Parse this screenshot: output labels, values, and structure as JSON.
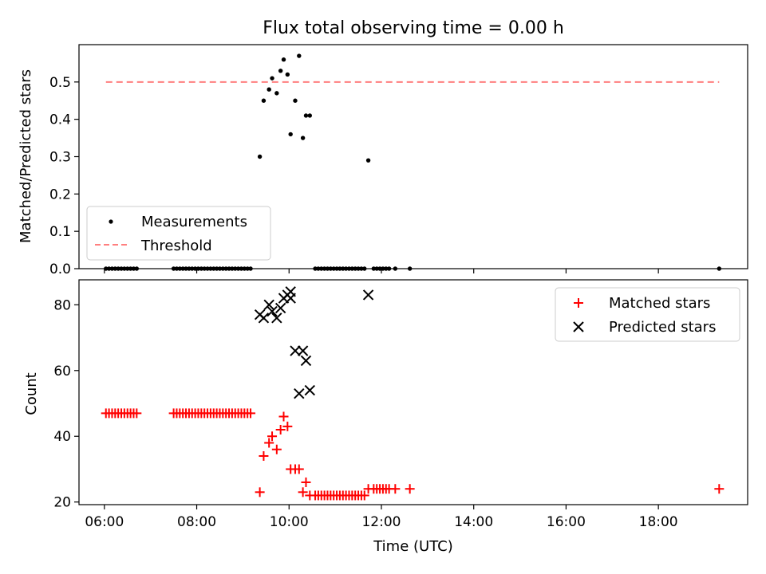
{
  "chart_data": [
    {
      "type": "scatter",
      "title": "Flux total observing time = 0.00 h",
      "ylabel": "Matched/Predicted stars",
      "xlabel": "",
      "xlim": [
        "05:27",
        "19:56"
      ],
      "ylim": [
        0,
        0.6
      ],
      "yticks": [
        0.0,
        0.1,
        0.2,
        0.3,
        0.4,
        0.5
      ],
      "ytick_labels": [
        "0.0",
        "0.1",
        "0.2",
        "0.3",
        "0.4",
        "0.5"
      ],
      "grid": false,
      "legend_position": "lower-left",
      "legend": [
        {
          "label": "Measurements",
          "marker": "dot",
          "color": "#000000"
        },
        {
          "label": "Threshold",
          "marker": "dashed-line",
          "color": "#ff7f7f"
        }
      ],
      "series": [
        {
          "name": "Measurements",
          "marker": "dot",
          "color": "#000000",
          "points": [
            [
              "06:02",
              0
            ],
            [
              "06:06",
              0
            ],
            [
              "06:10",
              0
            ],
            [
              "06:14",
              0
            ],
            [
              "06:18",
              0
            ],
            [
              "06:22",
              0
            ],
            [
              "06:26",
              0
            ],
            [
              "06:30",
              0
            ],
            [
              "06:34",
              0
            ],
            [
              "06:38",
              0
            ],
            [
              "06:42",
              0
            ],
            [
              "07:30",
              0
            ],
            [
              "07:34",
              0
            ],
            [
              "07:38",
              0
            ],
            [
              "07:42",
              0
            ],
            [
              "07:46",
              0
            ],
            [
              "07:50",
              0
            ],
            [
              "07:54",
              0
            ],
            [
              "07:58",
              0
            ],
            [
              "08:02",
              0
            ],
            [
              "08:06",
              0
            ],
            [
              "08:10",
              0
            ],
            [
              "08:14",
              0
            ],
            [
              "08:18",
              0
            ],
            [
              "08:22",
              0
            ],
            [
              "08:26",
              0
            ],
            [
              "08:30",
              0
            ],
            [
              "08:34",
              0
            ],
            [
              "08:38",
              0
            ],
            [
              "08:42",
              0
            ],
            [
              "08:46",
              0
            ],
            [
              "08:50",
              0
            ],
            [
              "08:54",
              0
            ],
            [
              "08:58",
              0
            ],
            [
              "09:02",
              0
            ],
            [
              "09:06",
              0
            ],
            [
              "09:10",
              0
            ],
            [
              "09:22",
              0.3
            ],
            [
              "09:27",
              0.45
            ],
            [
              "09:34",
              0.48
            ],
            [
              "09:38",
              0.51
            ],
            [
              "09:44",
              0.47
            ],
            [
              "09:49",
              0.53
            ],
            [
              "09:53",
              0.56
            ],
            [
              "09:58",
              0.52
            ],
            [
              "10:02",
              0.36
            ],
            [
              "10:08",
              0.45
            ],
            [
              "10:13",
              0.57
            ],
            [
              "10:18",
              0.35
            ],
            [
              "10:22",
              0.41
            ],
            [
              "10:27",
              0.41
            ],
            [
              "10:34",
              0
            ],
            [
              "10:38",
              0
            ],
            [
              "10:42",
              0
            ],
            [
              "10:46",
              0
            ],
            [
              "10:50",
              0
            ],
            [
              "10:54",
              0
            ],
            [
              "10:58",
              0
            ],
            [
              "11:02",
              0
            ],
            [
              "11:06",
              0
            ],
            [
              "11:10",
              0
            ],
            [
              "11:14",
              0
            ],
            [
              "11:18",
              0
            ],
            [
              "11:22",
              0
            ],
            [
              "11:26",
              0
            ],
            [
              "11:30",
              0
            ],
            [
              "11:34",
              0
            ],
            [
              "11:38",
              0
            ],
            [
              "11:43",
              0.29
            ],
            [
              "11:50",
              0
            ],
            [
              "11:54",
              0
            ],
            [
              "11:58",
              0
            ],
            [
              "12:02",
              0
            ],
            [
              "12:06",
              0
            ],
            [
              "12:10",
              0
            ],
            [
              "12:18",
              0
            ],
            [
              "12:37",
              0
            ],
            [
              "19:19",
              0
            ]
          ]
        },
        {
          "name": "Threshold",
          "marker": "dashed-line",
          "color": "#ff7f7f",
          "points": [
            [
              "06:02",
              0.5
            ],
            [
              "19:19",
              0.5
            ]
          ]
        }
      ]
    },
    {
      "type": "scatter",
      "title": "",
      "xlabel": "Time (UTC)",
      "ylabel": "Count",
      "xlim": [
        "05:27",
        "19:56"
      ],
      "ylim": [
        19.2,
        87.6
      ],
      "xticks": [
        "06:00",
        "08:00",
        "10:00",
        "12:00",
        "14:00",
        "16:00",
        "18:00"
      ],
      "xtick_labels": [
        "06:00",
        "08:00",
        "10:00",
        "12:00",
        "14:00",
        "16:00",
        "18:00"
      ],
      "yticks": [
        20,
        40,
        60,
        80
      ],
      "ytick_labels": [
        "20",
        "40",
        "60",
        "80"
      ],
      "grid": false,
      "legend_position": "top-right",
      "legend": [
        {
          "label": "Matched stars",
          "marker": "plus",
          "color": "#ff0000"
        },
        {
          "label": "Predicted stars",
          "marker": "x",
          "color": "#000000"
        }
      ],
      "series": [
        {
          "name": "Matched stars",
          "marker": "plus",
          "color": "#ff0000",
          "points": [
            [
              "06:02",
              47
            ],
            [
              "06:06",
              47
            ],
            [
              "06:10",
              47
            ],
            [
              "06:14",
              47
            ],
            [
              "06:18",
              47
            ],
            [
              "06:22",
              47
            ],
            [
              "06:26",
              47
            ],
            [
              "06:30",
              47
            ],
            [
              "06:34",
              47
            ],
            [
              "06:38",
              47
            ],
            [
              "06:42",
              47
            ],
            [
              "07:30",
              47
            ],
            [
              "07:34",
              47
            ],
            [
              "07:38",
              47
            ],
            [
              "07:42",
              47
            ],
            [
              "07:46",
              47
            ],
            [
              "07:50",
              47
            ],
            [
              "07:54",
              47
            ],
            [
              "07:58",
              47
            ],
            [
              "08:02",
              47
            ],
            [
              "08:06",
              47
            ],
            [
              "08:10",
              47
            ],
            [
              "08:14",
              47
            ],
            [
              "08:18",
              47
            ],
            [
              "08:22",
              47
            ],
            [
              "08:26",
              47
            ],
            [
              "08:30",
              47
            ],
            [
              "08:34",
              47
            ],
            [
              "08:38",
              47
            ],
            [
              "08:42",
              47
            ],
            [
              "08:46",
              47
            ],
            [
              "08:50",
              47
            ],
            [
              "08:54",
              47
            ],
            [
              "08:58",
              47
            ],
            [
              "09:02",
              47
            ],
            [
              "09:06",
              47
            ],
            [
              "09:10",
              47
            ],
            [
              "09:22",
              23
            ],
            [
              "09:27",
              34
            ],
            [
              "09:34",
              38
            ],
            [
              "09:38",
              40
            ],
            [
              "09:44",
              36
            ],
            [
              "09:49",
              42
            ],
            [
              "09:53",
              46
            ],
            [
              "09:58",
              43
            ],
            [
              "10:02",
              30
            ],
            [
              "10:08",
              30
            ],
            [
              "10:13",
              30
            ],
            [
              "10:18",
              23
            ],
            [
              "10:22",
              26
            ],
            [
              "10:27",
              22
            ],
            [
              "10:34",
              22
            ],
            [
              "10:38",
              22
            ],
            [
              "10:42",
              22
            ],
            [
              "10:46",
              22
            ],
            [
              "10:50",
              22
            ],
            [
              "10:54",
              22
            ],
            [
              "10:58",
              22
            ],
            [
              "11:02",
              22
            ],
            [
              "11:06",
              22
            ],
            [
              "11:10",
              22
            ],
            [
              "11:14",
              22
            ],
            [
              "11:18",
              22
            ],
            [
              "11:22",
              22
            ],
            [
              "11:26",
              22
            ],
            [
              "11:30",
              22
            ],
            [
              "11:34",
              22
            ],
            [
              "11:38",
              22
            ],
            [
              "11:43",
              24
            ],
            [
              "11:50",
              24
            ],
            [
              "11:54",
              24
            ],
            [
              "11:58",
              24
            ],
            [
              "12:02",
              24
            ],
            [
              "12:06",
              24
            ],
            [
              "12:10",
              24
            ],
            [
              "12:18",
              24
            ],
            [
              "12:37",
              24
            ],
            [
              "19:19",
              24
            ]
          ]
        },
        {
          "name": "Predicted stars",
          "marker": "x",
          "color": "#000000",
          "points": [
            [
              "09:22",
              77
            ],
            [
              "09:27",
              76
            ],
            [
              "09:34",
              80
            ],
            [
              "09:38",
              78
            ],
            [
              "09:44",
              76
            ],
            [
              "09:49",
              79
            ],
            [
              "09:53",
              82
            ],
            [
              "09:58",
              83
            ],
            [
              "10:02",
              82
            ],
            [
              "10:02",
              84
            ],
            [
              "10:08",
              66
            ],
            [
              "10:13",
              53
            ],
            [
              "10:18",
              66
            ],
            [
              "10:22",
              63
            ],
            [
              "10:27",
              54
            ],
            [
              "11:43",
              83
            ]
          ]
        }
      ]
    }
  ]
}
